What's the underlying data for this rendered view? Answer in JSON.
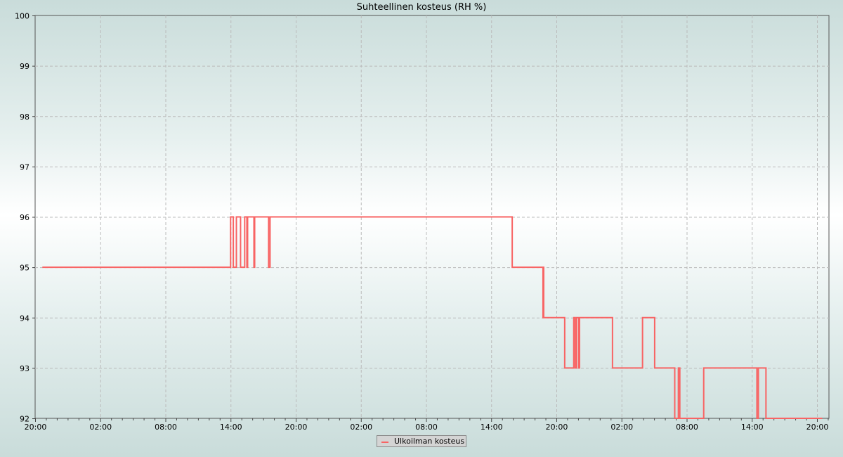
{
  "chart_data": {
    "type": "line",
    "step": true,
    "title": "Suhteellinen kosteus (RH %)",
    "ylim": [
      92,
      100
    ],
    "yticks": [
      "92",
      "93",
      "94",
      "95",
      "96",
      "97",
      "98",
      "99",
      "100"
    ],
    "xticks": [
      "20:00",
      "02:00",
      "08:00",
      "14:00",
      "20:00",
      "02:00",
      "08:00",
      "14:00",
      "20:00",
      "02:00",
      "08:00",
      "14:00",
      "20:00"
    ],
    "x_range": [
      "20:00",
      "21:05"
    ],
    "grid": true,
    "legend_position": "bottom-center",
    "series": [
      {
        "name": "Ulkoilman kosteus",
        "color": "#f86464",
        "points": [
          [
            "20:40",
            95
          ],
          [
            "14:00",
            96
          ],
          [
            "14:15",
            95
          ],
          [
            "14:32",
            96
          ],
          [
            "14:55",
            95
          ],
          [
            "15:18",
            96
          ],
          [
            "15:30",
            95
          ],
          [
            "15:34",
            96
          ],
          [
            "16:09",
            95
          ],
          [
            "16:13",
            96
          ],
          [
            "17:30",
            95
          ],
          [
            "17:38",
            96
          ],
          [
            "15:56",
            95
          ],
          [
            "18:46",
            94
          ],
          [
            "18:48",
            95
          ],
          [
            "18:50",
            94
          ],
          [
            "20:46",
            93
          ],
          [
            "21:36",
            94
          ],
          [
            "21:44",
            93
          ],
          [
            "21:52",
            94
          ],
          [
            "22:04",
            93
          ],
          [
            "22:08",
            94
          ],
          [
            "01:10",
            93
          ],
          [
            "03:56",
            94
          ],
          [
            "05:03",
            93
          ],
          [
            "06:54",
            92
          ],
          [
            "07:14",
            93
          ],
          [
            "07:22",
            92
          ],
          [
            "09:34",
            93
          ],
          [
            "14:28",
            92
          ],
          [
            "14:36",
            93
          ],
          [
            "15:18",
            92
          ],
          [
            "20:29",
            92
          ]
        ]
      }
    ]
  }
}
